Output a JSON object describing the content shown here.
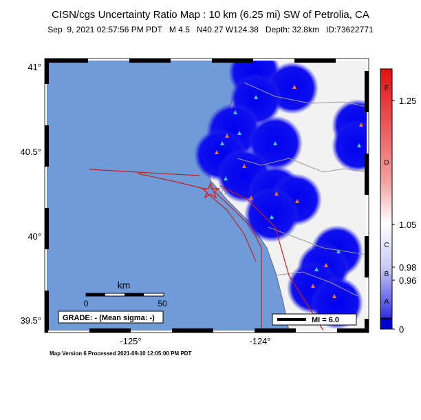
{
  "header": {
    "title": "CISN/cgs Uncertainty Ratio Map : 10 km (6.25 mi) SW of Petrolia, CA",
    "subtitle": "Sep  9, 2021 02:57:56 PM PDT   M 4.5   N40.27 W124.38   Depth: 32.8km   ID:73622771"
  },
  "map": {
    "lat_labels": [
      "41°",
      "40.5°",
      "40°",
      "39.5°"
    ],
    "lon_labels": [
      "-125°",
      "-124°"
    ],
    "scale_bar": {
      "unit": "km",
      "start": "0",
      "end": "50"
    },
    "grade": "GRADE: - (Mean sigma: -)",
    "mi_legend": "MI = 6.0"
  },
  "colorbar": {
    "grades": [
      "F",
      "D",
      "C",
      "B",
      "A"
    ],
    "ticks": [
      "1.25",
      "1.05",
      "0.98",
      "0.96",
      "0"
    ]
  },
  "footer": "Map Version 6 Processed 2021-09-10 12:05:00 PM PDT"
}
